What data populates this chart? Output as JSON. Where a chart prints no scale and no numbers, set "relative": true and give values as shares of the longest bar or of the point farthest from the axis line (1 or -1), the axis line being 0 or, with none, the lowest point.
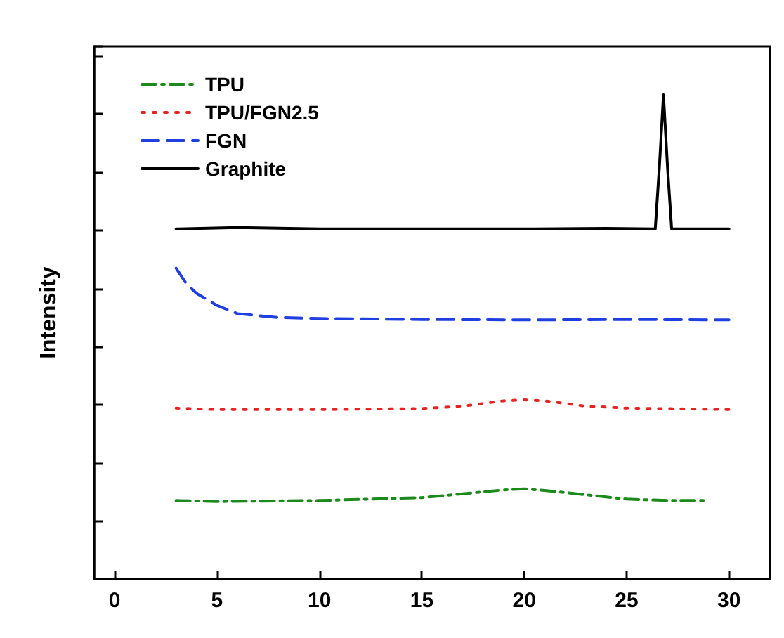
{
  "chart_data": {
    "type": "line",
    "ylabel": "Intensity",
    "relative": true,
    "xlim": [
      -1,
      32
    ],
    "xticks": [
      0,
      5,
      10,
      15,
      20,
      25,
      30
    ],
    "legend": "top left",
    "marker": "none",
    "grid": false,
    "series": [
      {
        "name": "TPU",
        "color": "#1a8a1a",
        "line_style": "dashdot",
        "x": [
          3,
          5,
          10,
          15,
          17,
          19,
          20,
          21,
          23,
          25,
          27,
          29
        ],
        "values": [
          0.162,
          0.16,
          0.162,
          0.168,
          0.176,
          0.184,
          0.186,
          0.183,
          0.174,
          0.165,
          0.162,
          0.162
        ]
      },
      {
        "name": "TPU/FGN2.5",
        "color": "#e8231f",
        "line_style": "dotted",
        "x": [
          3,
          5,
          10,
          15,
          17,
          19,
          20,
          21,
          23,
          25,
          30
        ],
        "values": [
          0.353,
          0.35,
          0.35,
          0.352,
          0.357,
          0.368,
          0.37,
          0.368,
          0.357,
          0.353,
          0.35
        ]
      },
      {
        "name": "FGN",
        "color": "#1f3fe0",
        "line_style": "dashed",
        "x": [
          3,
          3.5,
          4,
          5,
          6,
          8,
          10,
          15,
          20,
          25,
          30
        ],
        "values": [
          0.642,
          0.61,
          0.59,
          0.565,
          0.548,
          0.54,
          0.538,
          0.536,
          0.535,
          0.536,
          0.535
        ]
      },
      {
        "name": "Graphite",
        "color": "#000000",
        "line_style": "solid",
        "x": [
          3,
          6,
          10,
          15,
          20,
          24,
          26.4,
          26.6,
          26.8,
          27,
          27.2,
          28,
          30
        ],
        "values": [
          0.723,
          0.726,
          0.723,
          0.723,
          0.723,
          0.724,
          0.723,
          0.85,
          1,
          0.85,
          0.723,
          0.723,
          0.723
        ]
      }
    ]
  }
}
